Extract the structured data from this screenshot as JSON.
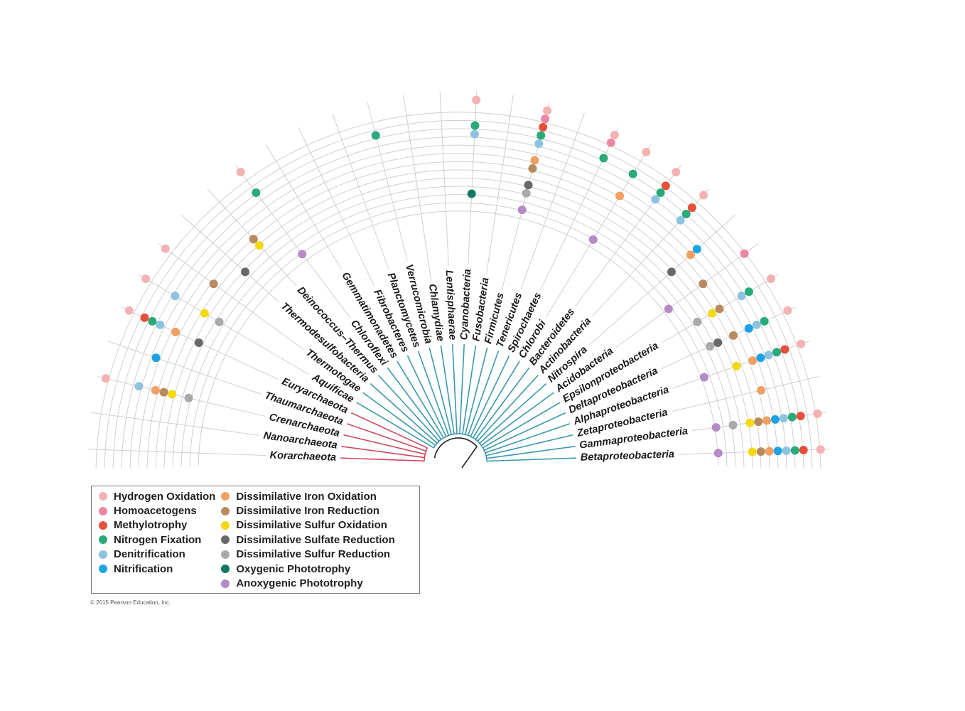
{
  "traits": [
    {
      "key": "h2",
      "label": "Hydrogen Oxidation",
      "color": "#f4b2b4"
    },
    {
      "key": "homo",
      "label": "Homoacetogens",
      "color": "#ec86a1"
    },
    {
      "key": "methyl",
      "label": "Methylotrophy",
      "color": "#e6503b"
    },
    {
      "key": "nfix",
      "label": "Nitrogen Fixation",
      "color": "#2aaa78"
    },
    {
      "key": "denit",
      "label": "Denitrification",
      "color": "#8dc3de"
    },
    {
      "key": "nitri",
      "label": "Nitrification",
      "color": "#1ba3e6"
    },
    {
      "key": "feox",
      "label": "Dissimilative Iron Oxidation",
      "color": "#f0a062"
    },
    {
      "key": "fered",
      "label": "Dissimilative Iron Reduction",
      "color": "#b88a5f"
    },
    {
      "key": "sox",
      "label": "Dissimilative Sulfur Oxidation",
      "color": "#f4d810"
    },
    {
      "key": "so4red",
      "label": "Dissimilative Sulfate Reduction",
      "color": "#686868"
    },
    {
      "key": "sred",
      "label": "Dissimilative Sulfur Reduction",
      "color": "#a9a9a9"
    },
    {
      "key": "oxy",
      "label": "Oxygenic Phototrophy",
      "color": "#0e7a62"
    },
    {
      "key": "anoxy",
      "label": "Anoxygenic Phototrophy",
      "color": "#b48bc5"
    }
  ],
  "branch_colors": {
    "archaea": "#c94a5c",
    "bacteria": "#3a98ad",
    "root": "#222222",
    "grid": "#cfcfcf"
  },
  "taxa": [
    {
      "name": "Korarchaeota",
      "domain": "archaea",
      "traits": []
    },
    {
      "name": "Nanoarchaeota",
      "domain": "archaea",
      "traits": []
    },
    {
      "name": "Crenarchaeota",
      "domain": "archaea",
      "traits": [
        "h2",
        "denit",
        "feox",
        "fered",
        "sox",
        "sred"
      ]
    },
    {
      "name": "Thaumarchaeota",
      "domain": "archaea",
      "traits": [
        "nitri"
      ]
    },
    {
      "name": "Euryarchaeota",
      "domain": "archaea",
      "traits": [
        "h2",
        "methyl",
        "nfix",
        "denit",
        "feox",
        "so4red"
      ]
    },
    {
      "name": "Aquificae",
      "domain": "bacteria",
      "traits": [
        "h2",
        "denit",
        "sox",
        "sred"
      ]
    },
    {
      "name": "Thermotogae",
      "domain": "bacteria",
      "traits": [
        "h2",
        "fered"
      ]
    },
    {
      "name": "Thermodesulfobacteria",
      "domain": "bacteria",
      "traits": [
        "so4red"
      ]
    },
    {
      "name": "Deinococcus–Thermus",
      "domain": "bacteria",
      "traits": [
        "fered",
        "sox"
      ]
    },
    {
      "name": "Chloroflexi",
      "domain": "bacteria",
      "traits": [
        "h2",
        "nfix",
        "anoxy"
      ]
    },
    {
      "name": "Gemmatimonadetes",
      "domain": "bacteria",
      "traits": []
    },
    {
      "name": "Fibrobacteres",
      "domain": "bacteria",
      "traits": []
    },
    {
      "name": "Planctomycetes",
      "domain": "bacteria",
      "traits": []
    },
    {
      "name": "Verrucomicrobia",
      "domain": "bacteria",
      "traits": [
        "nfix"
      ]
    },
    {
      "name": "Chlamydiae",
      "domain": "bacteria",
      "traits": []
    },
    {
      "name": "Lentisphaerae",
      "domain": "bacteria",
      "traits": []
    },
    {
      "name": "Cyanobacteria",
      "domain": "bacteria",
      "traits": [
        "h2",
        "nfix",
        "denit",
        "oxy"
      ]
    },
    {
      "name": "Fusobacteria",
      "domain": "bacteria",
      "traits": []
    },
    {
      "name": "Firmicutes",
      "domain": "bacteria",
      "traits": [
        "h2",
        "homo",
        "methyl",
        "nfix",
        "denit",
        "feox",
        "fered",
        "so4red",
        "sred",
        "anoxy"
      ]
    },
    {
      "name": "Tenericutes",
      "domain": "bacteria",
      "traits": []
    },
    {
      "name": "Spirochaetes",
      "domain": "bacteria",
      "traits": [
        "h2",
        "homo",
        "nfix"
      ]
    },
    {
      "name": "Chlorobi",
      "domain": "bacteria",
      "traits": [
        "h2",
        "nfix",
        "feox",
        "anoxy"
      ]
    },
    {
      "name": "Bacteroidetes",
      "domain": "bacteria",
      "traits": [
        "h2",
        "methyl",
        "nfix",
        "denit"
      ]
    },
    {
      "name": "Actinobacteria",
      "domain": "bacteria",
      "traits": [
        "h2",
        "methyl",
        "nfix",
        "denit"
      ]
    },
    {
      "name": "Nitrospira",
      "domain": "bacteria",
      "traits": [
        "nitri",
        "feox",
        "so4red"
      ]
    },
    {
      "name": "Acidobacteria",
      "domain": "bacteria",
      "traits": [
        "homo",
        "fered",
        "anoxy"
      ]
    },
    {
      "name": "Epsilonproteobacteria",
      "domain": "bacteria",
      "traits": [
        "h2",
        "nfix",
        "denit",
        "fered",
        "sox",
        "sred"
      ]
    },
    {
      "name": "Deltaproteobacteria",
      "domain": "bacteria",
      "traits": [
        "h2",
        "nfix",
        "denit",
        "nitri",
        "fered",
        "so4red",
        "sred"
      ]
    },
    {
      "name": "Alphaproteobacteria",
      "domain": "bacteria",
      "traits": [
        "h2",
        "methyl",
        "nfix",
        "denit",
        "nitri",
        "feox",
        "sox",
        "anoxy"
      ]
    },
    {
      "name": "Zetaproteobacteria",
      "domain": "bacteria",
      "traits": [
        "feox"
      ]
    },
    {
      "name": "Gammaproteobacteria",
      "domain": "bacteria",
      "traits": [
        "h2",
        "methyl",
        "nfix",
        "denit",
        "nitri",
        "feox",
        "fered",
        "sox",
        "sred",
        "anoxy"
      ]
    },
    {
      "name": "Betaproteobacteria",
      "domain": "bacteria",
      "traits": [
        "h2",
        "methyl",
        "nfix",
        "denit",
        "nitri",
        "feox",
        "fered",
        "sox",
        "anoxy"
      ]
    }
  ],
  "copyright": "© 2015 Pearson Education, Inc."
}
